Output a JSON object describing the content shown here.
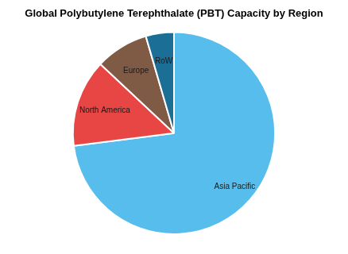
{
  "chart_data": {
    "type": "pie",
    "title": "Global Polybutylene Terephthalate (PBT) Capacity by Region",
    "categories": [
      "Asia Pacific",
      "North America",
      "Europe",
      "RoW"
    ],
    "values": [
      73,
      14,
      8.5,
      4.5
    ],
    "colors": [
      "#56bdec",
      "#e84545",
      "#7f5a45",
      "#1b6f97"
    ],
    "data_labels": false
  }
}
